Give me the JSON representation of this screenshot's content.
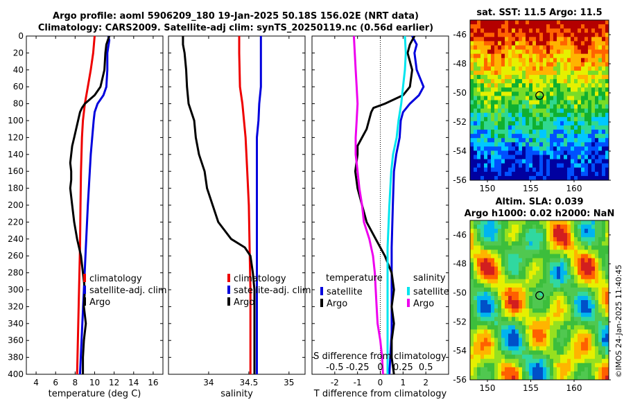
{
  "header": {
    "line1": "Argo profile: aoml 5906209_180 19-Jan-2025 50.18S 156.02E (NRT data)",
    "line2": "Climatology: CARS2009. Satellite-adj clim: synTS_20250119.nc (0.56d earlier)"
  },
  "stamp": "©IMOS 24-Jan-2025 11:40:45",
  "colors": {
    "climatology": "#ee0000",
    "satellite": "#0000dd",
    "argo": "#000000",
    "t_diff_sat": "#0000dd",
    "s_diff_sat": "#00e5ee",
    "s_diff_argo": "#ee00ee"
  },
  "chart_data": [
    {
      "type": "line",
      "title": "",
      "xlabel": "temperature (deg C)",
      "ylabel": "depth",
      "xlim": [
        3,
        17
      ],
      "ylim": [
        400,
        0
      ],
      "xticks": [
        4,
        6,
        8,
        10,
        12,
        14,
        16
      ],
      "yticks": [
        0,
        20,
        40,
        60,
        80,
        100,
        120,
        140,
        160,
        180,
        200,
        220,
        240,
        260,
        280,
        300,
        320,
        340,
        360,
        380,
        400
      ],
      "legend": [
        "climatology",
        "satellite-adj. clim",
        "Argo"
      ],
      "series": [
        {
          "name": "climatology",
          "color": "#ee0000",
          "depth": [
            0,
            20,
            40,
            60,
            80,
            100,
            120,
            140,
            160,
            200,
            250,
            300,
            350,
            400
          ],
          "values": [
            10.0,
            9.85,
            9.6,
            9.3,
            9.0,
            8.8,
            8.7,
            8.65,
            8.6,
            8.55,
            8.5,
            8.4,
            8.3,
            8.2
          ]
        },
        {
          "name": "satellite-adj. clim",
          "color": "#0000dd",
          "depth": [
            0,
            5,
            20,
            40,
            60,
            70,
            80,
            90,
            100,
            120,
            140,
            160,
            200,
            250,
            300,
            350,
            400
          ],
          "values": [
            11.4,
            11.5,
            11.3,
            11.3,
            11.2,
            10.9,
            10.3,
            10.0,
            9.9,
            9.75,
            9.6,
            9.5,
            9.3,
            9.1,
            8.9,
            8.7,
            8.5
          ]
        },
        {
          "name": "Argo",
          "color": "#000000",
          "depth": [
            0,
            10,
            20,
            40,
            60,
            70,
            80,
            85,
            90,
            100,
            110,
            120,
            130,
            140,
            150,
            160,
            170,
            180,
            200,
            220,
            240,
            260,
            280,
            300,
            320,
            340,
            360,
            380,
            400
          ],
          "values": [
            11.5,
            11.2,
            11.1,
            11.0,
            10.6,
            10.0,
            9.0,
            8.7,
            8.5,
            8.3,
            8.1,
            7.9,
            7.7,
            7.6,
            7.5,
            7.6,
            7.6,
            7.5,
            7.7,
            7.9,
            8.2,
            8.6,
            8.8,
            9.0,
            8.9,
            9.1,
            8.9,
            8.8,
            8.8
          ]
        }
      ]
    },
    {
      "type": "line",
      "title": "",
      "xlabel": "salinity",
      "xlim": [
        33.5,
        35.2
      ],
      "ylim": [
        400,
        0
      ],
      "xticks": [
        34,
        34.5,
        35
      ],
      "legend": [
        "climatology",
        "satellite-adj. clim",
        "Argo"
      ],
      "series": [
        {
          "name": "climatology",
          "color": "#ee0000",
          "depth": [
            0,
            20,
            60,
            80,
            100,
            120,
            140,
            160,
            200,
            250,
            300,
            350,
            400
          ],
          "values": [
            34.38,
            34.38,
            34.39,
            34.42,
            34.44,
            34.46,
            34.47,
            34.48,
            34.5,
            34.51,
            34.52,
            34.52,
            34.52
          ]
        },
        {
          "name": "satellite-adj. clim",
          "color": "#0000dd",
          "depth": [
            0,
            20,
            60,
            80,
            100,
            120,
            140,
            200,
            250,
            300,
            350,
            400
          ],
          "values": [
            34.65,
            34.65,
            34.65,
            34.63,
            34.62,
            34.6,
            34.6,
            34.6,
            34.6,
            34.6,
            34.6,
            34.6
          ]
        },
        {
          "name": "Argo",
          "color": "#000000",
          "depth": [
            0,
            10,
            20,
            40,
            60,
            80,
            100,
            120,
            140,
            160,
            180,
            200,
            220,
            240,
            250,
            260,
            280,
            300,
            320,
            340,
            360,
            380,
            400
          ],
          "values": [
            33.68,
            33.68,
            33.7,
            33.72,
            33.73,
            33.75,
            33.82,
            33.84,
            33.88,
            33.95,
            33.98,
            34.05,
            34.12,
            34.28,
            34.45,
            34.52,
            34.55,
            34.57,
            34.57,
            34.57,
            34.57,
            34.57,
            34.57
          ]
        }
      ]
    },
    {
      "type": "line",
      "title": "",
      "xlabel": "T difference from climatology",
      "xlabel_top": "S difference from climatology",
      "xlim": [
        -3,
        3
      ],
      "ylim": [
        400,
        0
      ],
      "xticks": [
        -2,
        -1,
        0,
        1,
        2
      ],
      "xticks_top": [
        -0.5,
        -0.25,
        0,
        0.25,
        0.5
      ],
      "xticks_top_labels": [
        "-0.5",
        "-0.25",
        "0",
        "0.25",
        "0.5"
      ],
      "legend_left_title": "temperature",
      "legend_right_title": "salinity",
      "legend_left": [
        "satellite",
        "Argo"
      ],
      "legend_right": [
        "satellite",
        "Argo"
      ],
      "series": [
        {
          "name": "T satellite",
          "color": "#0000dd",
          "depth": [
            0,
            10,
            20,
            40,
            60,
            70,
            80,
            90,
            100,
            120,
            140,
            160,
            200,
            250,
            300,
            350,
            400
          ],
          "values": [
            1.4,
            1.6,
            1.5,
            1.6,
            1.9,
            1.7,
            1.3,
            1.0,
            0.9,
            0.85,
            0.7,
            0.6,
            0.55,
            0.5,
            0.5,
            0.5,
            0.4
          ]
        },
        {
          "name": "T Argo",
          "color": "#000000",
          "depth": [
            0,
            10,
            20,
            40,
            60,
            70,
            80,
            85,
            90,
            100,
            110,
            120,
            130,
            140,
            160,
            180,
            200,
            220,
            240,
            260,
            280,
            300,
            320,
            340,
            360,
            380,
            400
          ],
          "values": [
            1.5,
            1.3,
            1.2,
            1.4,
            1.3,
            1.0,
            0.2,
            -0.3,
            -0.4,
            -0.5,
            -0.6,
            -0.8,
            -1.0,
            -1.0,
            -1.1,
            -1.0,
            -0.8,
            -0.6,
            -0.2,
            0.2,
            0.5,
            0.6,
            0.5,
            0.6,
            0.5,
            0.5,
            0.6
          ]
        },
        {
          "name": "S satellite",
          "color": "#00e5ee",
          "depth": [
            0,
            20,
            40,
            60,
            80,
            100,
            120,
            140,
            160,
            200,
            250,
            300,
            350,
            400
          ],
          "values": [
            0.27,
            0.28,
            0.27,
            0.25,
            0.23,
            0.2,
            0.18,
            0.14,
            0.12,
            0.1,
            0.08,
            0.08,
            0.08,
            0.08
          ]
        },
        {
          "name": "S Argo",
          "color": "#ee00ee",
          "depth": [
            0,
            20,
            40,
            60,
            80,
            100,
            120,
            140,
            160,
            180,
            200,
            220,
            240,
            260,
            280,
            300,
            320,
            340,
            360,
            380,
            400
          ],
          "values": [
            -0.29,
            -0.28,
            -0.27,
            -0.26,
            -0.25,
            -0.26,
            -0.27,
            -0.27,
            -0.25,
            -0.23,
            -0.2,
            -0.18,
            -0.12,
            -0.08,
            -0.06,
            -0.05,
            -0.04,
            -0.03,
            0.0,
            0.02,
            0.03
          ]
        }
      ]
    },
    {
      "type": "heatmap",
      "title": "sat. SST: 11.5 Argo: 11.5",
      "xlim": [
        148,
        164
      ],
      "ylim": [
        -56,
        -45
      ],
      "xticks": [
        150,
        155,
        160
      ],
      "yticks": [
        -46,
        -48,
        -50,
        -52,
        -54,
        -56
      ],
      "marker": {
        "lon": 156.02,
        "lat": -50.18
      }
    },
    {
      "type": "heatmap",
      "title": "Altim. SLA: 0.039",
      "subtitle": "Argo h1000: 0.02 h2000: NaN",
      "xlim": [
        148,
        164
      ],
      "ylim": [
        -56,
        -45
      ],
      "xticks": [
        150,
        155,
        160
      ],
      "yticks": [
        -46,
        -48,
        -50,
        -52,
        -54,
        -56
      ],
      "marker": {
        "lon": 156.02,
        "lat": -50.18
      }
    }
  ]
}
